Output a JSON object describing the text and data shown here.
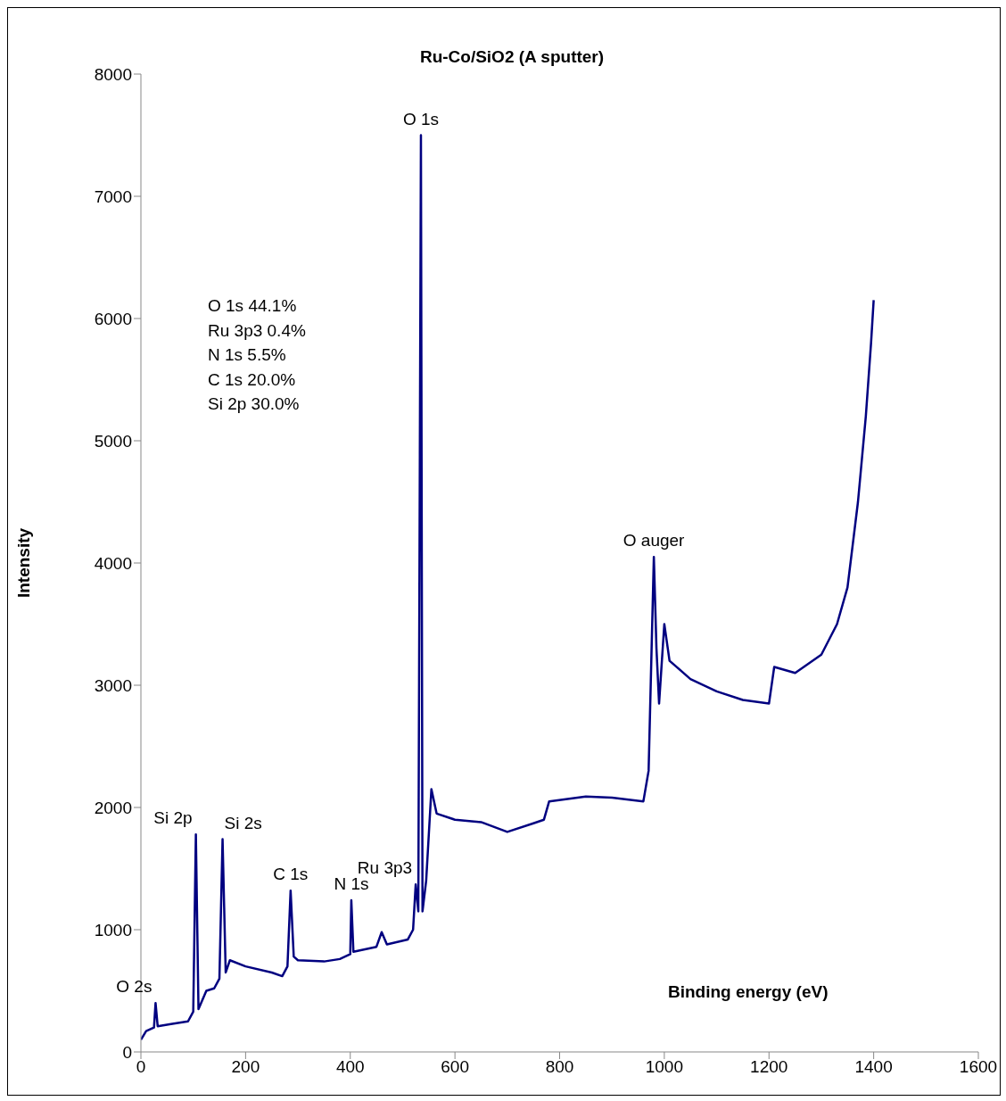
{
  "chart_data": {
    "type": "line",
    "title": "Ru-Co/SiO2 (A sputter)",
    "xlabel": "Binding energy (eV)",
    "ylabel": "Intensity",
    "x": [
      0,
      10,
      25,
      28,
      32,
      60,
      90,
      100,
      105,
      110,
      125,
      140,
      150,
      156,
      162,
      170,
      200,
      250,
      270,
      280,
      286,
      292,
      300,
      350,
      380,
      400,
      402,
      406,
      450,
      460,
      470,
      510,
      520,
      525,
      530,
      535,
      538,
      545,
      555,
      565,
      600,
      650,
      700,
      750,
      770,
      780,
      850,
      900,
      960,
      970,
      980,
      985,
      990,
      1000,
      1010,
      1050,
      1100,
      1150,
      1200,
      1210,
      1250,
      1300,
      1330,
      1350,
      1370,
      1385,
      1395,
      1400
    ],
    "series": [
      {
        "color": "#000080",
        "values": [
          100,
          170,
          200,
          400,
          210,
          230,
          250,
          330,
          1780,
          350,
          500,
          520,
          600,
          1740,
          650,
          750,
          700,
          650,
          620,
          700,
          1320,
          780,
          750,
          740,
          760,
          800,
          1240,
          820,
          860,
          980,
          880,
          920,
          1000,
          1370,
          1150,
          7500,
          1150,
          1400,
          2150,
          1950,
          1900,
          1880,
          1800,
          1870,
          1900,
          2050,
          2090,
          2080,
          2050,
          2300,
          4050,
          3300,
          2850,
          3500,
          3200,
          3050,
          2950,
          2880,
          2850,
          3150,
          3100,
          3250,
          3500,
          3800,
          4500,
          5200,
          5800,
          6150
        ]
      }
    ],
    "xlim": [
      0,
      1600
    ],
    "xticks": [
      0,
      200,
      400,
      600,
      800,
      1000,
      1200,
      1400,
      1600
    ],
    "ylim": [
      0,
      8000
    ],
    "yticks": [
      0,
      1000,
      2000,
      3000,
      4000,
      5000,
      6000,
      7000,
      8000
    ],
    "grid": false,
    "legend": false,
    "marker": "none",
    "line_style": "solid",
    "annotations": [
      {
        "text": "O 2s",
        "x": 28,
        "y": 400
      },
      {
        "text": "Si 2p",
        "x": 105,
        "y": 1780
      },
      {
        "text": "Si 2s",
        "x": 156,
        "y": 1740
      },
      {
        "text": "C 1s",
        "x": 286,
        "y": 1320
      },
      {
        "text": "N 1s",
        "x": 402,
        "y": 1240
      },
      {
        "text": "Ru 3p3",
        "x": 525,
        "y": 1370
      },
      {
        "text": "O 1s",
        "x": 535,
        "y": 7500
      },
      {
        "text": "O auger",
        "x": 980,
        "y": 4050
      },
      "O 1s 44.1%",
      "Ru 3p3 0.4%",
      "N 1s 5.5%",
      "C 1s 20.0%",
      "Si 2p 30.0%"
    ]
  }
}
